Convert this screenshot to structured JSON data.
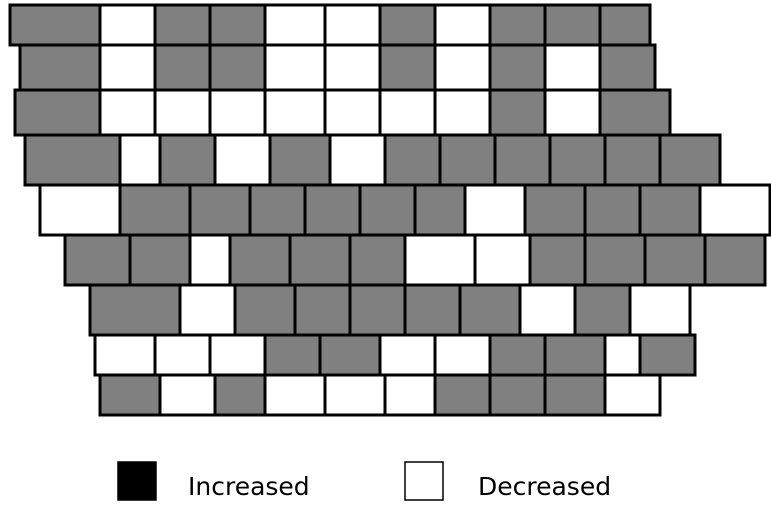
{
  "legend": [
    {
      "label": "Increased",
      "color": "#000000"
    },
    {
      "label": "Decreased",
      "color": "#ffffff"
    }
  ]
}
